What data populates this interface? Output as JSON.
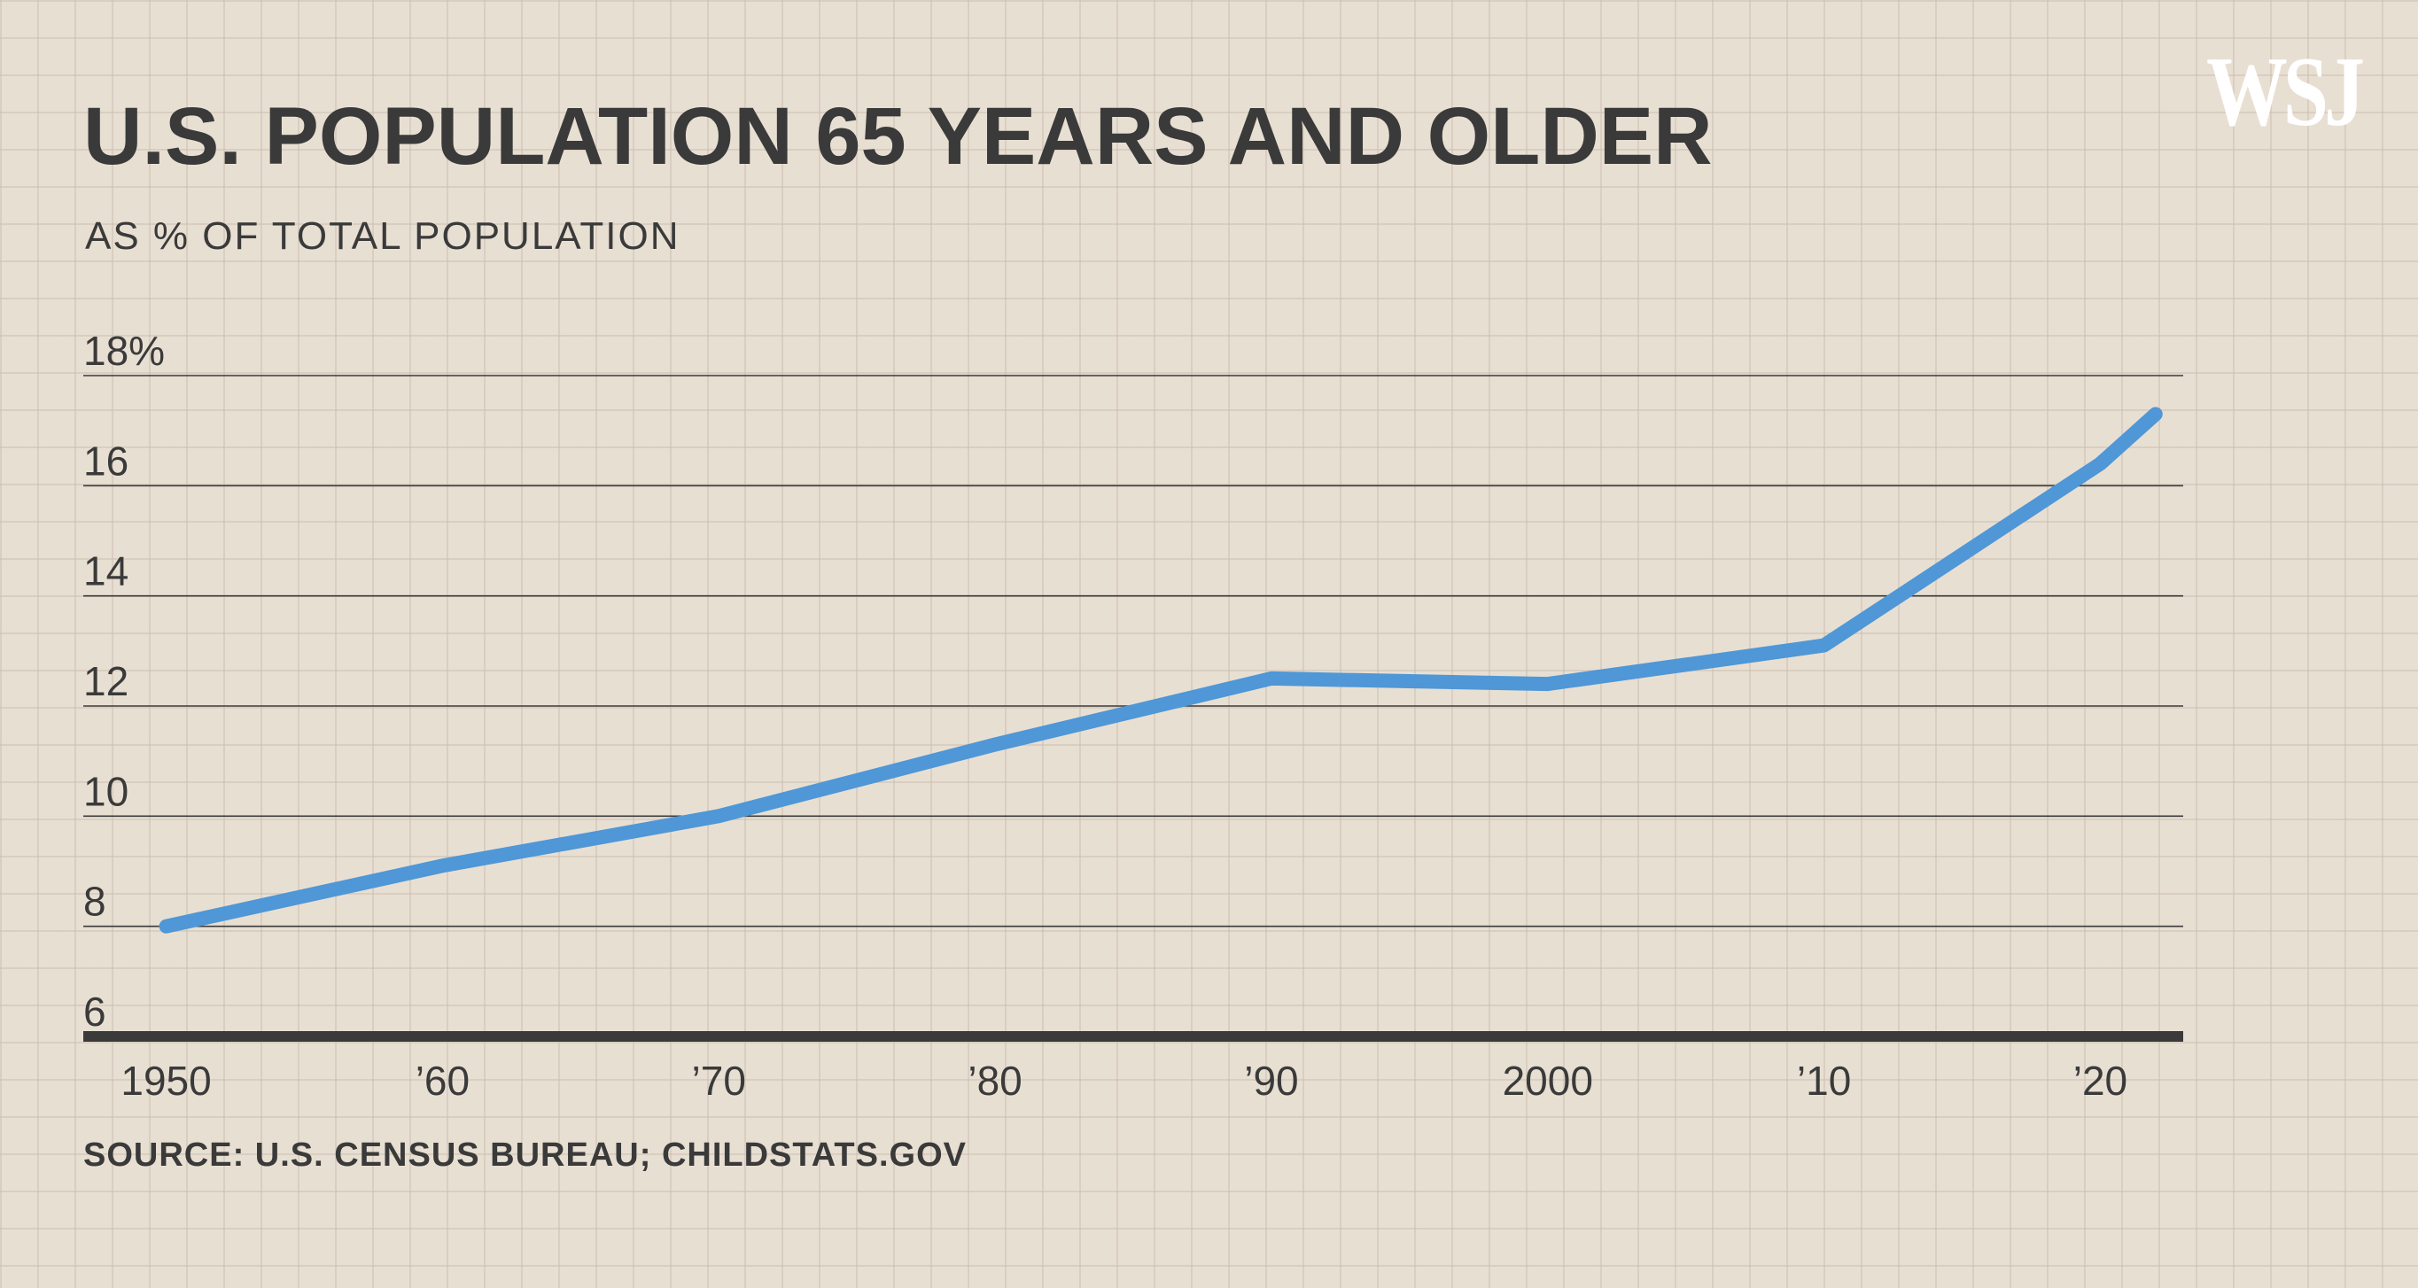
{
  "brand": {
    "logo_text": "WSJ"
  },
  "chart_data": {
    "type": "line",
    "title": "U.S. POPULATION 65 YEARS AND OLDER",
    "subtitle": "AS % OF TOTAL POPULATION",
    "source": "SOURCE: U.S. CENSUS BUREAU; CHILDSTATS.GOV",
    "xlabel": "",
    "ylabel": "",
    "xlim": [
      1947,
      2023
    ],
    "ylim": [
      6,
      18
    ],
    "x_ticks": [
      {
        "value": 1950,
        "label": "1950"
      },
      {
        "value": 1960,
        "label": "’60"
      },
      {
        "value": 1970,
        "label": "’70"
      },
      {
        "value": 1980,
        "label": "’80"
      },
      {
        "value": 1990,
        "label": "’90"
      },
      {
        "value": 2000,
        "label": "2000"
      },
      {
        "value": 2010,
        "label": "’10"
      },
      {
        "value": 2020,
        "label": "’20"
      }
    ],
    "y_ticks": [
      {
        "value": 6,
        "label": "6"
      },
      {
        "value": 8,
        "label": "8"
      },
      {
        "value": 10,
        "label": "10"
      },
      {
        "value": 12,
        "label": "12"
      },
      {
        "value": 14,
        "label": "14"
      },
      {
        "value": 16,
        "label": "16"
      },
      {
        "value": 18,
        "label": "18%"
      }
    ],
    "grid": true,
    "series": [
      {
        "name": "65 years and older",
        "color": "#4f97d6",
        "x": [
          1950,
          1960,
          1970,
          1980,
          1990,
          2000,
          2010,
          2020,
          2022
        ],
        "values": [
          8.0,
          9.1,
          10.0,
          11.3,
          12.5,
          12.4,
          13.1,
          16.4,
          17.3
        ]
      }
    ]
  }
}
